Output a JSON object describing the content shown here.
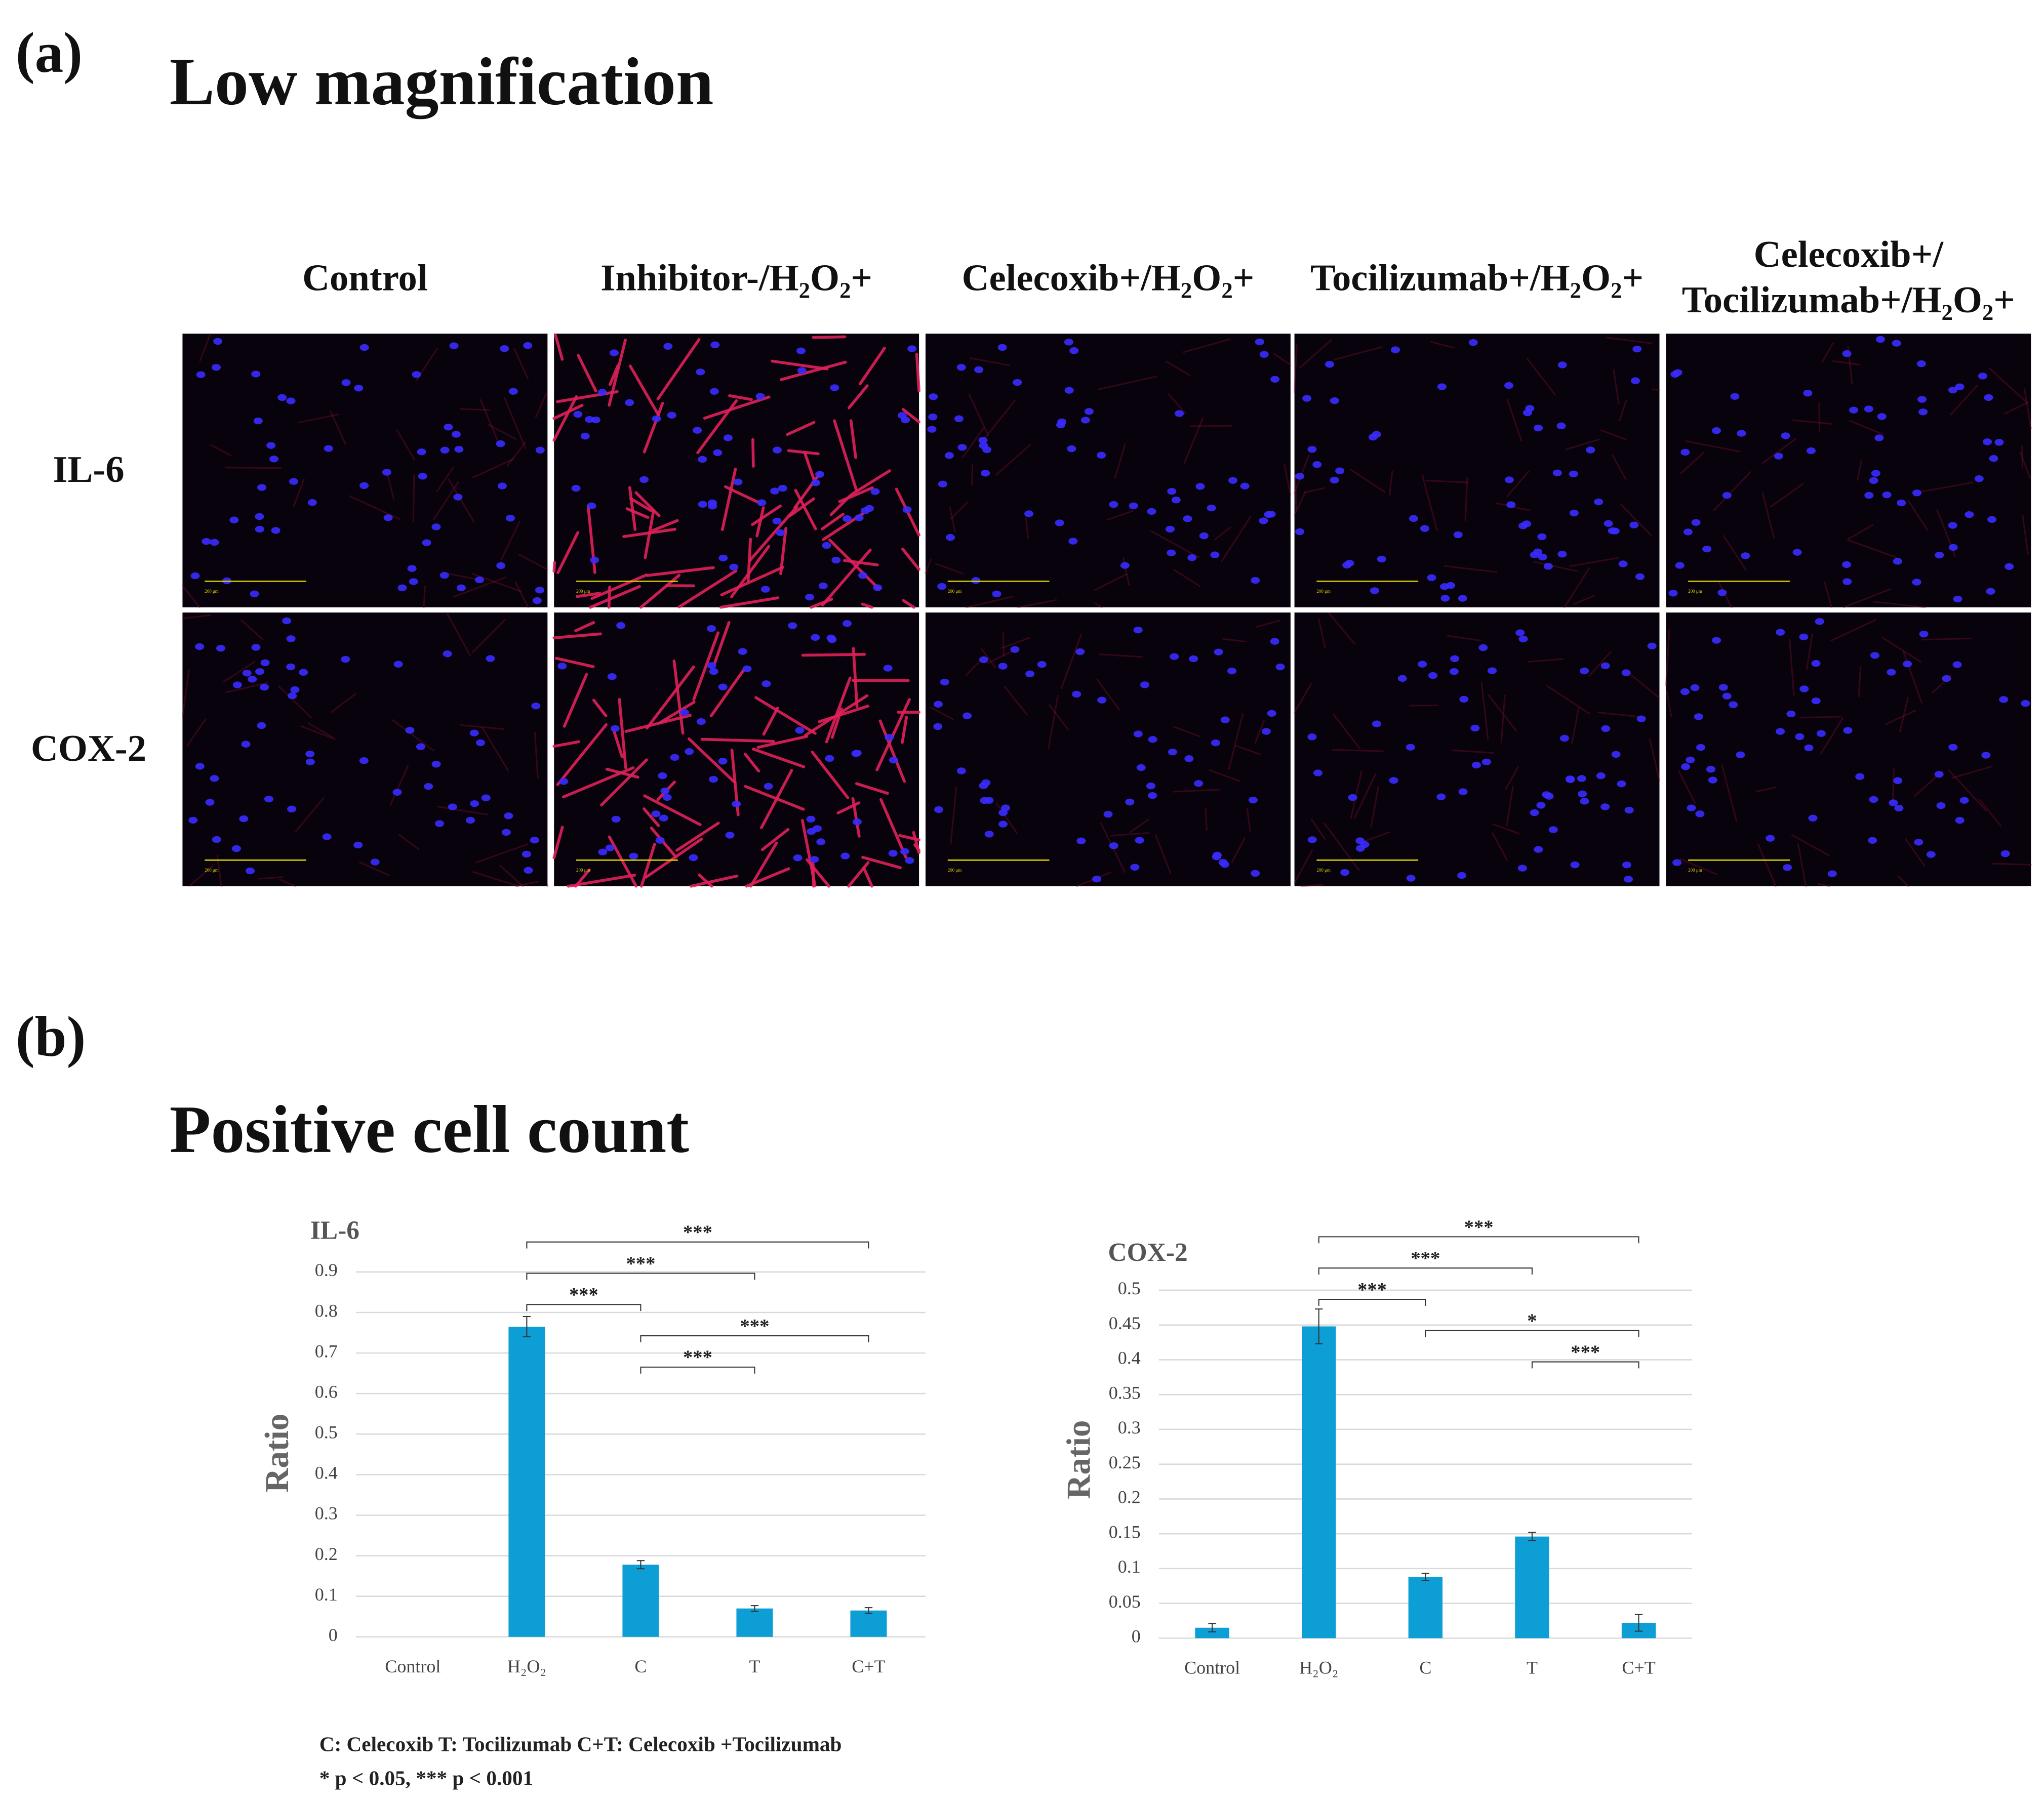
{
  "panel_a": {
    "label": "(a)",
    "title": "Low magnification",
    "columns": [
      [
        "Control"
      ],
      [
        "Inhibitor-/H₂O₂+"
      ],
      [
        "Celecoxib+/H₂O₂+"
      ],
      [
        "Tocilizumab+/H₂O₂+"
      ],
      [
        "Celecoxib+/",
        "Tocilizumab+/H₂O₂+"
      ]
    ],
    "rows": [
      "IL-6",
      "COX-2"
    ],
    "scale_bar_label": "200 μm"
  },
  "panel_b": {
    "label": "(b)",
    "title": "Positive cell count",
    "footnotes": [
      "C: Celecoxib T: Tocilizumab C+T: Celecoxib +Tocilizumab",
      "* p < 0.05, *** p < 0.001"
    ]
  },
  "chart_data": [
    {
      "type": "bar",
      "title": "IL-6",
      "y_label": "Ratio",
      "categories": [
        "Control",
        "H₂O₂",
        "C",
        "T",
        "C+T"
      ],
      "values": [
        0,
        0.765,
        0.178,
        0.07,
        0.065
      ],
      "errors": [
        0,
        0.025,
        0.01,
        0.007,
        0.007
      ],
      "color": "#0d9ed6",
      "ylim": [
        0,
        0.9
      ],
      "yticks": [
        0,
        0.1,
        0.2,
        0.3,
        0.4,
        0.5,
        0.6,
        0.7,
        0.8,
        0.9
      ],
      "grid": true,
      "brackets": [
        {
          "from": 1,
          "to": 4,
          "label": "***"
        },
        {
          "from": 1,
          "to": 3,
          "label": "***"
        },
        {
          "from": 1,
          "to": 2,
          "label": "***"
        },
        {
          "from": 2,
          "to": 4,
          "label": "***"
        },
        {
          "from": 2,
          "to": 3,
          "label": "***"
        }
      ]
    },
    {
      "type": "bar",
      "title": "COX-2",
      "y_label": "Ratio",
      "categories": [
        "Control",
        "H₂O₂",
        "C",
        "T",
        "C+T"
      ],
      "values": [
        0.015,
        0.448,
        0.088,
        0.146,
        0.022
      ],
      "errors": [
        0.006,
        0.025,
        0.005,
        0.006,
        0.012
      ],
      "color": "#0d9ed6",
      "ylim": [
        0,
        0.5
      ],
      "yticks": [
        0,
        0.05,
        0.1,
        0.15,
        0.2,
        0.25,
        0.3,
        0.35,
        0.4,
        0.45,
        0.5
      ],
      "grid": true,
      "brackets": [
        {
          "from": 1,
          "to": 4,
          "label": "***"
        },
        {
          "from": 1,
          "to": 3,
          "label": "***"
        },
        {
          "from": 1,
          "to": 2,
          "label": "***"
        },
        {
          "from": 2,
          "to": 4,
          "label": "*"
        },
        {
          "from": 3,
          "to": 4,
          "label": "***"
        }
      ]
    }
  ]
}
